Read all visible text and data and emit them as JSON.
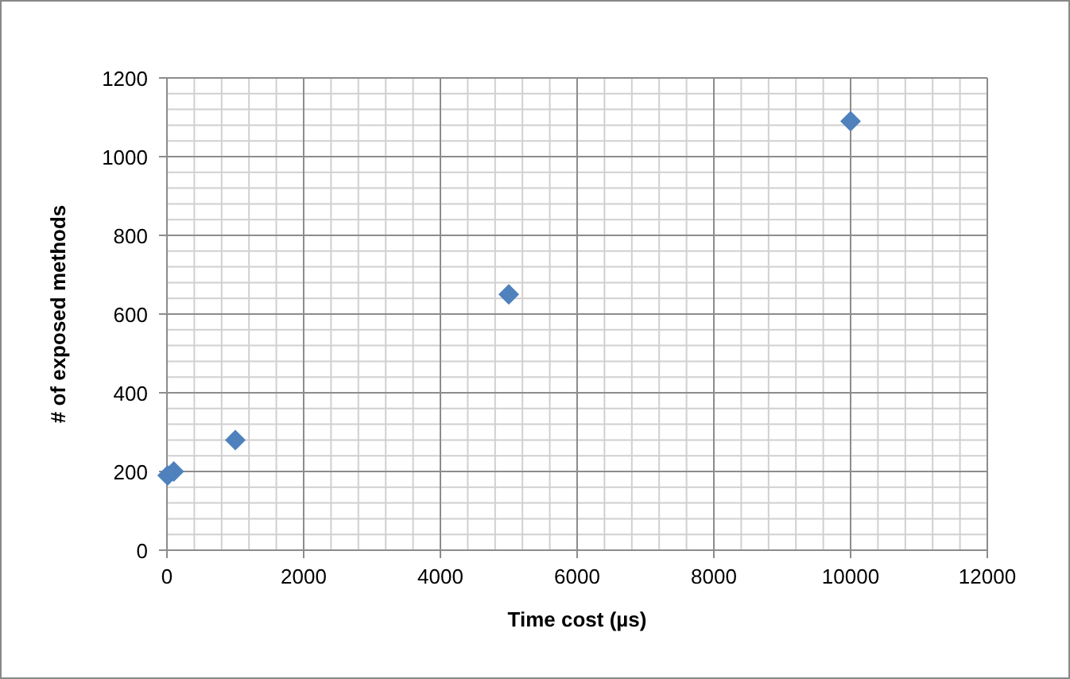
{
  "chart_data": {
    "type": "scatter",
    "xlabel": "Time cost (µs)",
    "ylabel": "# of exposed methods",
    "x": [
      10,
      100,
      1000,
      5000,
      10000
    ],
    "series": [
      {
        "color": "#4f81bd",
        "values": [
          190,
          200,
          280,
          650,
          1090
        ]
      }
    ],
    "xlim": [
      0,
      12000
    ],
    "xticks": [
      0,
      2000,
      4000,
      6000,
      8000,
      10000,
      12000
    ],
    "ylim": [
      0,
      1200
    ],
    "yticks": [
      0,
      200,
      400,
      600,
      800,
      1000,
      1200
    ],
    "grid": true,
    "marker": "diamond"
  }
}
